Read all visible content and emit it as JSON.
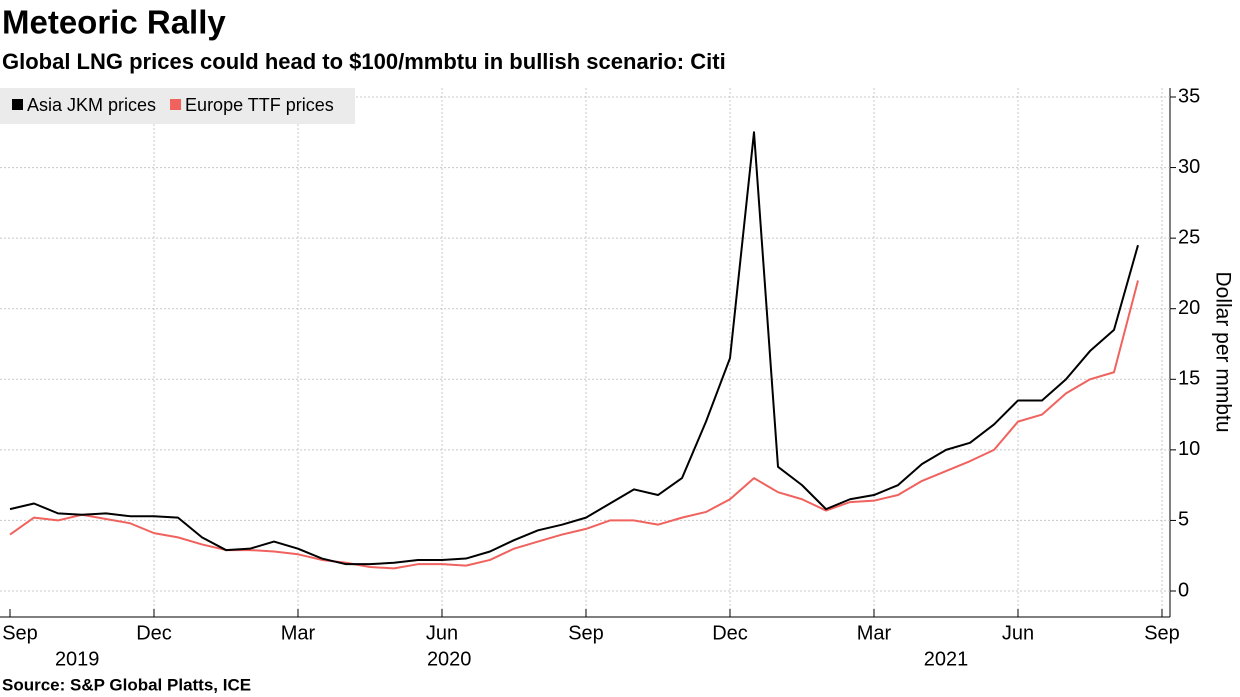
{
  "chart_data": {
    "type": "line",
    "title": "Meteoric Rally",
    "subtitle": "Global LNG prices could head to $100/mmbtu in bullish scenario: Citi",
    "y_label": "Dollar per mmbtu",
    "source": "Source: S&P Global Platts, ICE",
    "categories": [
      "Sep",
      null,
      null,
      null,
      null,
      null,
      "Dec",
      null,
      null,
      null,
      null,
      null,
      "Mar",
      null,
      null,
      null,
      null,
      null,
      "Jun",
      null,
      null,
      null,
      null,
      null,
      "Sep",
      null,
      null,
      null,
      null,
      null,
      "Dec",
      null,
      null,
      null,
      null,
      null,
      "Mar",
      null,
      null,
      null,
      null,
      null,
      "Jun",
      null,
      null,
      null,
      null,
      null,
      "Sep"
    ],
    "years": [
      "2019",
      "2020",
      "2021"
    ],
    "series": [
      {
        "name": "Asia JKM prices",
        "color": "#000000",
        "values": [
          5.8,
          6.2,
          5.5,
          5.4,
          5.5,
          5.3,
          5.3,
          5.2,
          3.8,
          2.9,
          3.0,
          3.5,
          3.0,
          2.3,
          1.9,
          1.9,
          2.0,
          2.2,
          2.2,
          2.3,
          2.8,
          3.6,
          4.3,
          4.7,
          5.2,
          6.2,
          7.2,
          6.8,
          8.0,
          12.0,
          16.5,
          32.5,
          8.8,
          7.5,
          5.8,
          6.5,
          6.8,
          7.5,
          9.0,
          10.0,
          10.5,
          11.8,
          13.5,
          13.5,
          15.0,
          17.0,
          18.5,
          24.5,
          null
        ]
      },
      {
        "name": "Europe TTF prices",
        "color": "#f0625e",
        "values": [
          4.0,
          5.2,
          5.0,
          5.4,
          5.1,
          4.8,
          4.1,
          3.8,
          3.3,
          2.9,
          2.9,
          2.8,
          2.6,
          2.2,
          2.0,
          1.7,
          1.6,
          1.9,
          1.9,
          1.8,
          2.2,
          3.0,
          3.5,
          4.0,
          4.4,
          5.0,
          5.0,
          4.7,
          5.2,
          5.6,
          6.5,
          8.0,
          7.0,
          6.5,
          5.7,
          6.3,
          6.4,
          6.8,
          7.8,
          8.5,
          9.2,
          10.0,
          12.0,
          12.5,
          14.0,
          15.0,
          15.5,
          22.0,
          null
        ]
      }
    ],
    "ylim": [
      -2,
      36
    ],
    "yticks": [
      0,
      5,
      10,
      15,
      20,
      25,
      30,
      35
    ],
    "grid": true,
    "legend": "top-left"
  }
}
